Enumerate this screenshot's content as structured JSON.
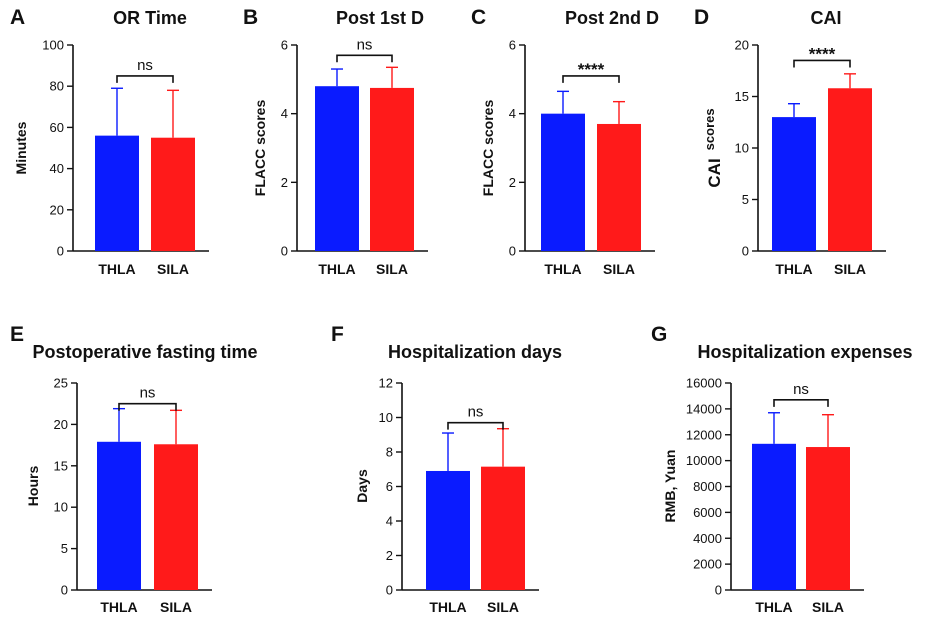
{
  "chart_data": [
    {
      "type": "bar",
      "panel": "A",
      "title": "OR Time",
      "ylabel": "Minutes",
      "ylim": [
        0,
        100
      ],
      "yticks": [
        0,
        20,
        40,
        60,
        80,
        100
      ],
      "categories": [
        "THLA",
        "SILA"
      ],
      "values": [
        56,
        55
      ],
      "errors": [
        23,
        23
      ],
      "colors": [
        "#0a1bff",
        "#ff1a1a"
      ],
      "significance": "ns",
      "bracket_y": 85
    },
    {
      "type": "bar",
      "panel": "B",
      "title": "Post 1st D",
      "ylabel": "FLACC scores",
      "ylim": [
        0,
        6
      ],
      "yticks": [
        0,
        2,
        4,
        6
      ],
      "categories": [
        "THLA",
        "SILA"
      ],
      "values": [
        4.8,
        4.75
      ],
      "errors": [
        0.5,
        0.6
      ],
      "colors": [
        "#0a1bff",
        "#ff1a1a"
      ],
      "significance": "ns",
      "bracket_y": 5.7
    },
    {
      "type": "bar",
      "panel": "C",
      "title": "Post 2nd D",
      "ylabel": "FLACC scores",
      "ylim": [
        0,
        6
      ],
      "yticks": [
        0,
        2,
        4,
        6
      ],
      "categories": [
        "THLA",
        "SILA"
      ],
      "values": [
        4.0,
        3.7
      ],
      "errors": [
        0.65,
        0.65
      ],
      "colors": [
        "#0a1bff",
        "#ff1a1a"
      ],
      "significance": "****",
      "bracket_y": 5.1
    },
    {
      "type": "bar",
      "panel": "D",
      "title": "CAI",
      "ylabel_parts": [
        "CAI",
        "scores"
      ],
      "ylim": [
        0,
        20
      ],
      "yticks": [
        0,
        5,
        10,
        15,
        20
      ],
      "categories": [
        "THLA",
        "SILA"
      ],
      "values": [
        13,
        15.8
      ],
      "errors": [
        1.3,
        1.4
      ],
      "colors": [
        "#0a1bff",
        "#ff1a1a"
      ],
      "significance": "****",
      "bracket_y": 18.5
    },
    {
      "type": "bar",
      "panel": "E",
      "title": "Postoperative fasting time",
      "ylabel": "Hours",
      "ylim": [
        0,
        25
      ],
      "yticks": [
        0,
        5,
        10,
        15,
        20,
        25
      ],
      "categories": [
        "THLA",
        "SILA"
      ],
      "values": [
        17.9,
        17.6
      ],
      "errors": [
        4.0,
        4.1
      ],
      "colors": [
        "#0a1bff",
        "#ff1a1a"
      ],
      "significance": "ns",
      "bracket_y": 22.5
    },
    {
      "type": "bar",
      "panel": "F",
      "title": "Hospitalization days",
      "ylabel": "Days",
      "ylim": [
        0,
        12
      ],
      "yticks": [
        0,
        2,
        4,
        6,
        8,
        10,
        12
      ],
      "categories": [
        "THLA",
        "SILA"
      ],
      "values": [
        6.9,
        7.15
      ],
      "errors": [
        2.2,
        2.2
      ],
      "colors": [
        "#0a1bff",
        "#ff1a1a"
      ],
      "significance": "ns",
      "bracket_y": 9.7
    },
    {
      "type": "bar",
      "panel": "G",
      "title": "Hospitalization expenses",
      "ylabel": "RMB, Yuan",
      "ylim": [
        0,
        16000
      ],
      "yticks": [
        0,
        2000,
        4000,
        6000,
        8000,
        10000,
        12000,
        14000,
        16000
      ],
      "categories": [
        "THLA",
        "SILA"
      ],
      "values": [
        11300,
        11050
      ],
      "errors": [
        2400,
        2500
      ],
      "colors": [
        "#0a1bff",
        "#ff1a1a"
      ],
      "significance": "ns",
      "bracket_y": 14700
    }
  ]
}
